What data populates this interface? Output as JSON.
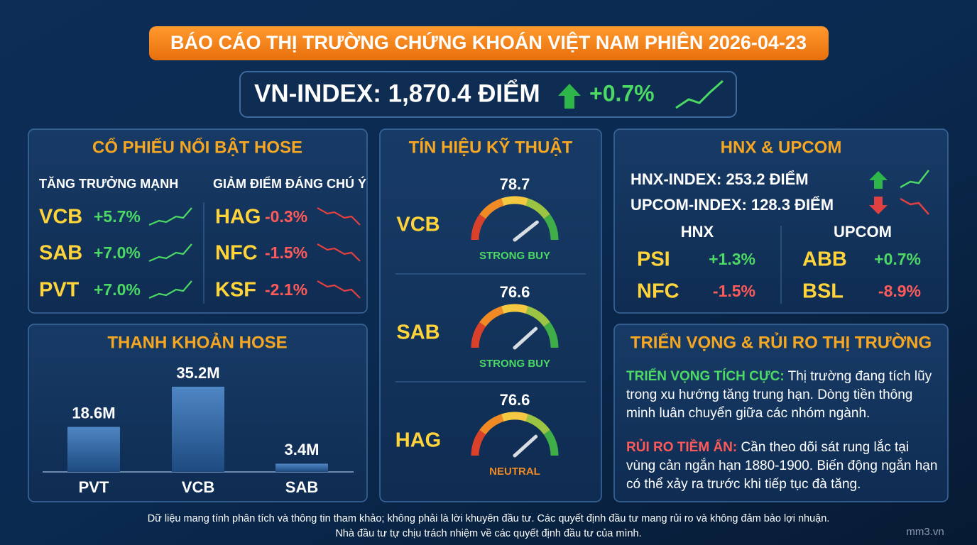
{
  "header": {
    "title": "BÁO CÁO THỊ TRƯỜNG CHỨNG KHOÁN VIỆT NAM PHIÊN 2026-04-23"
  },
  "vnindex": {
    "label": "VN-INDEX: 1,870.4 ĐIỂM",
    "change": "+0.7%"
  },
  "hose_movers": {
    "title": "CỔ PHIẾU NỔI BẬT HOSE",
    "gainers": {
      "heading": "TĂNG TRƯỞNG MẠNH",
      "items": [
        {
          "ticker": "VCB",
          "change": "+5.7%"
        },
        {
          "ticker": "SAB",
          "change": "+7.0%"
        },
        {
          "ticker": "PVT",
          "change": "+7.0%"
        }
      ]
    },
    "losers": {
      "heading": "GIẢM ĐIỂM ĐÁNG CHÚ Ý",
      "items": [
        {
          "ticker": "HAG",
          "change": "-0.3%"
        },
        {
          "ticker": "NFC",
          "change": "-1.5%"
        },
        {
          "ticker": "KSF",
          "change": "-2.1%"
        }
      ]
    }
  },
  "liquidity": {
    "title": "THANH KHOẢN HOSE",
    "type": "bar",
    "categories": [
      "PVT",
      "VCB",
      "SAB"
    ],
    "values": [
      18.6,
      35.2,
      3.4
    ],
    "value_labels": [
      "18.6M",
      "35.2M",
      "3.4M"
    ]
  },
  "signals": {
    "title": "TÍN HIỆU KỸ THUẬT",
    "range": [
      0,
      100
    ],
    "items": [
      {
        "ticker": "VCB",
        "value": 78.7,
        "label": "STRONG BUY"
      },
      {
        "ticker": "SAB",
        "value": 76.6,
        "label": "STRONG BUY"
      },
      {
        "ticker": "HAG",
        "value": 76.6,
        "label": "NEUTRAL"
      }
    ]
  },
  "hnx_upcom": {
    "title": "HNX & UPCOM",
    "indices": [
      "HNX-INDEX: 253.2 ĐIỂM",
      "UPCOM-INDEX: 128.3 ĐIỂM"
    ],
    "hnx": {
      "heading": "HNX",
      "items": [
        {
          "ticker": "PSI",
          "change": "+1.3%"
        },
        {
          "ticker": "NFC",
          "change": "-1.5%"
        }
      ]
    },
    "upcom": {
      "heading": "UPCOM",
      "items": [
        {
          "ticker": "ABB",
          "change": "+0.7%"
        },
        {
          "ticker": "BSL",
          "change": "-8.9%"
        }
      ]
    }
  },
  "outlook": {
    "title": "TRIỂN VỌNG & RỦI RO THỊ TRƯỜNG",
    "positive": {
      "label": "TRIỂN VỌNG TÍCH CỰC:",
      "text": "Thị trường đang tích lũy trong xu hướng tăng trung hạn. Dòng tiền thông minh luân chuyển giữa các nhóm ngành."
    },
    "risk": {
      "label": "RỦI RO TIỀM ẨN:",
      "text": "Cần theo dõi sát rung lắc tại vùng cản ngắn hạn 1880-1900. Biến động ngắn hạn có thể xảy ra trước khi tiếp tục đà tăng."
    }
  },
  "footer": {
    "lines": [
      "Dữ liệu mang tính phân tích và thông tin tham khảo; không phải là lời khuyên đầu tư. Các quyết định đầu tư mang rủi ro và không đảm bảo lợi nhuận.",
      "Nhà đầu tư tự chịu trách nhiệm về các quyết định đầu tư của mình."
    ],
    "watermark": "mm3.vn"
  }
}
